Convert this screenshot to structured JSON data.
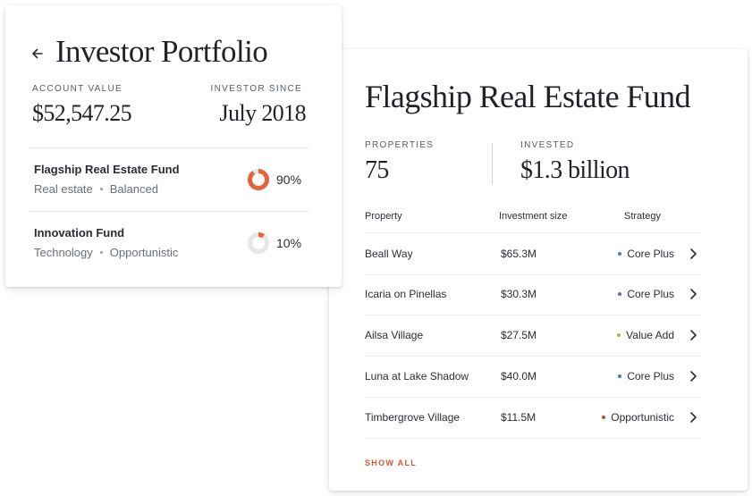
{
  "portfolio": {
    "title": "Investor Portfolio",
    "account_value_label": "ACCOUNT VALUE",
    "account_value": "$52,547.25",
    "investor_since_label": "INVESTOR SINCE",
    "investor_since": "July 2018",
    "funds": [
      {
        "name": "Flagship Real Estate Fund",
        "sector": "Real estate",
        "style": "Balanced",
        "percent_label": "90%",
        "allocation": 0.9
      },
      {
        "name": "Innovation Fund",
        "sector": "Technology",
        "style": "Opportunistic",
        "percent_label": "10%",
        "allocation": 0.1
      }
    ]
  },
  "fund": {
    "title": "Flagship Real Estate Fund",
    "properties_label": "PROPERTIES",
    "properties_value": "75",
    "invested_label": "INVESTED",
    "invested_value": "$1.3 billion",
    "columns": {
      "property": "Property",
      "size": "Investment size",
      "strategy": "Strategy"
    },
    "rows": [
      {
        "property": "Beall Way",
        "size": "$65.3M",
        "strategy": "Core Plus",
        "strategy_color": "#4a78c2"
      },
      {
        "property": "Icaria on Pinellas",
        "size": "$30.3M",
        "strategy": "Core Plus",
        "strategy_color": "#4a78c2"
      },
      {
        "property": "Ailsa Village",
        "size": "$27.5M",
        "strategy": "Value Add",
        "strategy_color": "#d2a24c"
      },
      {
        "property": "Luna at Lake Shadow",
        "size": "$40.0M",
        "strategy": "Core Plus",
        "strategy_color": "#4a78c2"
      },
      {
        "property": "Timbergrove Village",
        "size": "$11.5M",
        "strategy": "Opportunistic",
        "strategy_color": "#c9472b"
      }
    ],
    "show_all_label": "SHOW ALL"
  },
  "colors": {
    "accent": "#e8613a",
    "donut_track": "#e6e6e6",
    "link": "#d0582f"
  },
  "icons": {
    "back": "arrow-left-icon",
    "row_action": "chevron-right-icon"
  }
}
